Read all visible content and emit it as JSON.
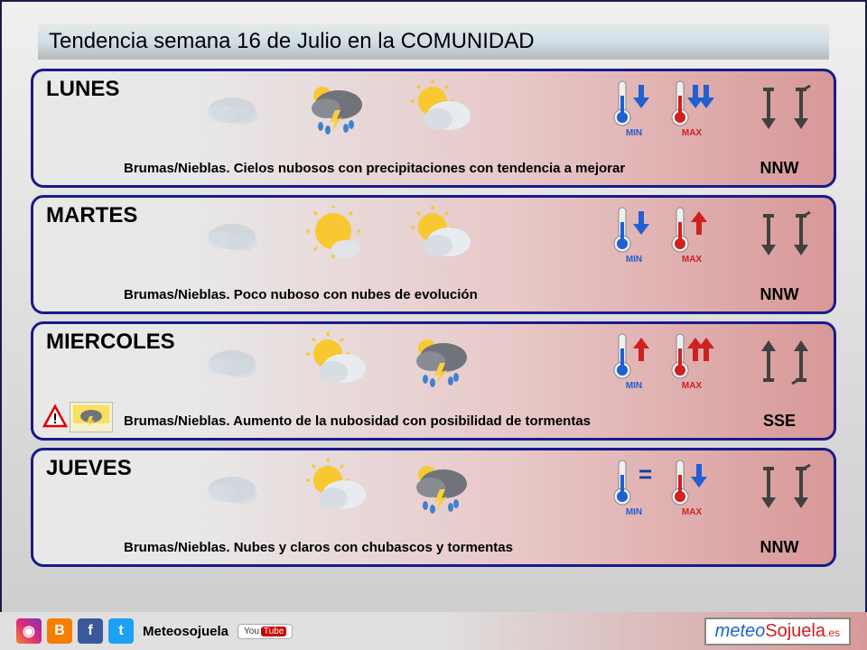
{
  "title": "Tendencia semana 16 de Julio en la COMUNIDAD",
  "colors": {
    "border": "#1a1a8a",
    "row_bg_left": "#e8e8e8",
    "row_bg_right": "#d89898",
    "min_thermo": "#2060d0",
    "max_thermo": "#d02020",
    "arrow_down": "#2060d0",
    "arrow_up": "#d02020",
    "wind_arrow": "#404040",
    "cloud": "#b0b8c0",
    "cloud_dark": "#70747a",
    "sun": "#f8c830",
    "rain": "#4080d0"
  },
  "days": [
    {
      "name": "LUNES",
      "icons": [
        "fog",
        "storm-rain",
        "sun-cloud"
      ],
      "min_trend": "down",
      "max_trend": "down-double",
      "wind_from": "N",
      "wind_dir": "NNW",
      "warning": false,
      "desc": "Brumas/Nieblas. Cielos nubosos con precipitaciones con tendencia a mejorar"
    },
    {
      "name": "MARTES",
      "icons": [
        "fog",
        "sun-small-cloud",
        "sun-cloud"
      ],
      "min_trend": "down",
      "max_trend": "up",
      "wind_from": "N",
      "wind_dir": "NNW",
      "warning": false,
      "desc": "Brumas/Nieblas. Poco nuboso con nubes de evolución"
    },
    {
      "name": "MIERCOLES",
      "icons": [
        "fog",
        "sun-cloud",
        "storm-rain"
      ],
      "min_trend": "up",
      "max_trend": "up-double",
      "wind_from": "S",
      "wind_dir": "SSE",
      "warning": true,
      "desc": "Brumas/Nieblas. Aumento de la nubosidad con posibilidad de tormentas"
    },
    {
      "name": "JUEVES",
      "icons": [
        "fog",
        "sun-cloud",
        "storm-rain"
      ],
      "min_trend": "equal",
      "max_trend": "down",
      "wind_from": "N",
      "wind_dir": "NNW",
      "warning": false,
      "desc": "Brumas/Nieblas. Nubes y claros con chubascos y tormentas"
    }
  ],
  "thermo_labels": {
    "min": "MIN",
    "max": "MAX"
  },
  "footer": {
    "brand": "Meteosojuela",
    "logo_main": "meteo",
    "logo_accent": "Sojuela",
    "logo_suffix": ".es",
    "logo_accent_color": "#d02020",
    "logo_main_color": "#2060d0"
  },
  "social": [
    {
      "name": "instagram",
      "bg": "linear-gradient(45deg,#f58529,#dd2a7b,#8134af)",
      "glyph": "◉"
    },
    {
      "name": "blogger",
      "bg": "#f57d00",
      "glyph": "B"
    },
    {
      "name": "facebook",
      "bg": "#3b5998",
      "glyph": "f"
    },
    {
      "name": "twitter",
      "bg": "#1da1f2",
      "glyph": "t"
    }
  ],
  "youtube_label": "YouTube"
}
